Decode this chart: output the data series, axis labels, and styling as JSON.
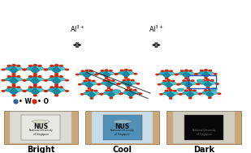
{
  "background_color": "#ffffff",
  "arrow_text_left": "Al$^{3+}$",
  "arrow_text_right": "Al$^{3+}$",
  "legend_W_color": "#3a6a9a",
  "legend_O_color": "#cc2200",
  "panel_labels": [
    "Bright",
    "Cool",
    "Dark"
  ],
  "label_fontsize": 7,
  "figsize": [
    3.09,
    1.89
  ],
  "dpi": 100,
  "oct_teal_light": "#48c8d8",
  "oct_teal_mid": "#28a8b8",
  "oct_teal_dark": "#1888a0",
  "oct_edge": "#0a6878",
  "oxygen_color": "#dd2200",
  "W_dot_color": "#3060a0",
  "Al_dot_color": "#40b0c0",
  "arrow_color": "#222222",
  "box_color": "#2255bb",
  "diag_line_color": "#111111",
  "bright_outer": "#c8a878",
  "bright_inner": "#dcdcd4",
  "bright_center": "#e8e8e2",
  "cool_outer": "#c8a878",
  "cool_inner": "#c8dce8",
  "cool_center": "#5090b8",
  "dark_outer": "#c8a878",
  "dark_inner": "#d0ccc0",
  "dark_center": "#080808",
  "nus_color_bright": "#111111",
  "nus_color_cool": "#111111",
  "nus_color_dark": "#888888"
}
